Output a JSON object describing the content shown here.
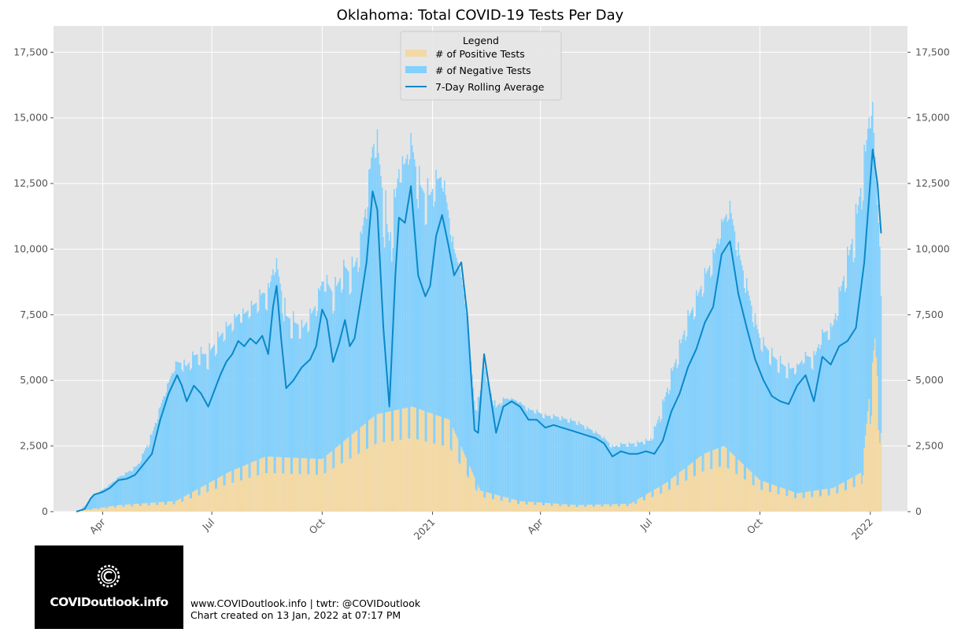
{
  "chart_data": {
    "type": "bar",
    "title": "Oklahoma: Total COVID-19 Tests Per Day",
    "xlabel": "",
    "ylabel": "",
    "ylim": [
      0,
      18500
    ],
    "y_ticks": [
      0,
      2500,
      5000,
      7500,
      10000,
      12500,
      15000,
      17500
    ],
    "y_tick_labels": [
      "0",
      "2,500",
      "5,000",
      "7,500",
      "10,000",
      "12,500",
      "15,000",
      "17,500"
    ],
    "y_axis_both_sides": true,
    "x_range": [
      "2020-02-20",
      "2022-02-01"
    ],
    "x_ticks": [
      {
        "date": "2020-04-01",
        "label": "Apr"
      },
      {
        "date": "2020-07-01",
        "label": "Jul"
      },
      {
        "date": "2020-10-01",
        "label": "Oct"
      },
      {
        "date": "2021-01-01",
        "label": "2021"
      },
      {
        "date": "2021-04-01",
        "label": "Apr"
      },
      {
        "date": "2021-07-01",
        "label": "Jul"
      },
      {
        "date": "2021-10-01",
        "label": "Oct"
      },
      {
        "date": "2022-01-01",
        "label": "2022"
      }
    ],
    "grid": true,
    "stacked": true,
    "legend": {
      "title": "Legend",
      "position": "top-center",
      "entries": [
        "# of Positive Tests",
        "# of Negative Tests",
        "7-Day Rolling Average"
      ]
    },
    "colors": {
      "positive": "#f3d9a4",
      "negative": "#83d0fc",
      "rolling": "#0a88c8",
      "plot_bg": "#e5e5e5",
      "grid": "#ffffff"
    },
    "series": [
      {
        "name": "7-Day Rolling Average",
        "kind": "line",
        "points": [
          [
            "2020-03-10",
            0
          ],
          [
            "2020-03-17",
            100
          ],
          [
            "2020-03-22",
            500
          ],
          [
            "2020-03-25",
            650
          ],
          [
            "2020-04-01",
            750
          ],
          [
            "2020-04-07",
            900
          ],
          [
            "2020-04-14",
            1200
          ],
          [
            "2020-04-21",
            1250
          ],
          [
            "2020-04-28",
            1400
          ],
          [
            "2020-05-05",
            1800
          ],
          [
            "2020-05-12",
            2200
          ],
          [
            "2020-05-19",
            3500
          ],
          [
            "2020-05-26",
            4500
          ],
          [
            "2020-06-02",
            5200
          ],
          [
            "2020-06-06",
            4800
          ],
          [
            "2020-06-10",
            4200
          ],
          [
            "2020-06-16",
            4800
          ],
          [
            "2020-06-22",
            4500
          ],
          [
            "2020-06-28",
            4000
          ],
          [
            "2020-07-03",
            4600
          ],
          [
            "2020-07-08",
            5200
          ],
          [
            "2020-07-13",
            5700
          ],
          [
            "2020-07-18",
            6000
          ],
          [
            "2020-07-23",
            6500
          ],
          [
            "2020-07-28",
            6300
          ],
          [
            "2020-08-02",
            6600
          ],
          [
            "2020-08-07",
            6400
          ],
          [
            "2020-08-12",
            6700
          ],
          [
            "2020-08-17",
            6000
          ],
          [
            "2020-08-21",
            7800
          ],
          [
            "2020-08-24",
            8600
          ],
          [
            "2020-08-28",
            6500
          ],
          [
            "2020-09-01",
            4700
          ],
          [
            "2020-09-07",
            5000
          ],
          [
            "2020-09-14",
            5500
          ],
          [
            "2020-09-21",
            5800
          ],
          [
            "2020-09-26",
            6300
          ],
          [
            "2020-10-01",
            7700
          ],
          [
            "2020-10-05",
            7300
          ],
          [
            "2020-10-10",
            5700
          ],
          [
            "2020-10-15",
            6400
          ],
          [
            "2020-10-20",
            7300
          ],
          [
            "2020-10-24",
            6300
          ],
          [
            "2020-10-28",
            6600
          ],
          [
            "2020-11-02",
            8000
          ],
          [
            "2020-11-07",
            9500
          ],
          [
            "2020-11-12",
            12200
          ],
          [
            "2020-11-16",
            11500
          ],
          [
            "2020-11-21",
            7000
          ],
          [
            "2020-11-26",
            4000
          ],
          [
            "2020-12-01",
            9000
          ],
          [
            "2020-12-04",
            11200
          ],
          [
            "2020-12-09",
            11000
          ],
          [
            "2020-12-14",
            12400
          ],
          [
            "2020-12-20",
            9000
          ],
          [
            "2020-12-26",
            8200
          ],
          [
            "2020-12-30",
            8600
          ],
          [
            "2021-01-04",
            10500
          ],
          [
            "2021-01-09",
            11300
          ],
          [
            "2021-01-14",
            10200
          ],
          [
            "2021-01-19",
            9000
          ],
          [
            "2021-01-25",
            9500
          ],
          [
            "2021-01-30",
            7500
          ],
          [
            "2021-02-05",
            3100
          ],
          [
            "2021-02-08",
            3000
          ],
          [
            "2021-02-13",
            6000
          ],
          [
            "2021-02-18",
            4500
          ],
          [
            "2021-02-23",
            3000
          ],
          [
            "2021-03-01",
            4000
          ],
          [
            "2021-03-08",
            4200
          ],
          [
            "2021-03-15",
            4000
          ],
          [
            "2021-03-22",
            3500
          ],
          [
            "2021-03-29",
            3500
          ],
          [
            "2021-04-05",
            3200
          ],
          [
            "2021-04-12",
            3300
          ],
          [
            "2021-04-19",
            3200
          ],
          [
            "2021-04-26",
            3100
          ],
          [
            "2021-05-03",
            3000
          ],
          [
            "2021-05-10",
            2900
          ],
          [
            "2021-05-17",
            2800
          ],
          [
            "2021-05-24",
            2600
          ],
          [
            "2021-05-31",
            2100
          ],
          [
            "2021-06-07",
            2300
          ],
          [
            "2021-06-14",
            2200
          ],
          [
            "2021-06-21",
            2200
          ],
          [
            "2021-06-28",
            2300
          ],
          [
            "2021-07-05",
            2200
          ],
          [
            "2021-07-12",
            2700
          ],
          [
            "2021-07-19",
            3800
          ],
          [
            "2021-07-26",
            4500
          ],
          [
            "2021-08-02",
            5500
          ],
          [
            "2021-08-09",
            6200
          ],
          [
            "2021-08-16",
            7200
          ],
          [
            "2021-08-23",
            7800
          ],
          [
            "2021-08-30",
            9800
          ],
          [
            "2021-09-06",
            10300
          ],
          [
            "2021-09-13",
            8300
          ],
          [
            "2021-09-20",
            7000
          ],
          [
            "2021-09-27",
            5800
          ],
          [
            "2021-10-04",
            5000
          ],
          [
            "2021-10-11",
            4400
          ],
          [
            "2021-10-18",
            4200
          ],
          [
            "2021-10-25",
            4100
          ],
          [
            "2021-11-01",
            4800
          ],
          [
            "2021-11-08",
            5200
          ],
          [
            "2021-11-15",
            4200
          ],
          [
            "2021-11-22",
            5900
          ],
          [
            "2021-11-29",
            5600
          ],
          [
            "2021-12-06",
            6300
          ],
          [
            "2021-12-13",
            6500
          ],
          [
            "2021-12-20",
            7000
          ],
          [
            "2021-12-27",
            9500
          ],
          [
            "2022-01-03",
            13800
          ],
          [
            "2022-01-07",
            12500
          ],
          [
            "2022-01-10",
            10600
          ]
        ]
      },
      {
        "name": "# of Negative Tests",
        "kind": "bar-envelope",
        "note": "approximate peak daily total tests",
        "points": [
          [
            "2020-03-15",
            200
          ],
          [
            "2020-04-01",
            900
          ],
          [
            "2020-05-01",
            2000
          ],
          [
            "2020-06-01",
            6000
          ],
          [
            "2020-07-01",
            7500
          ],
          [
            "2020-08-01",
            8500
          ],
          [
            "2020-08-22",
            10300
          ],
          [
            "2020-09-15",
            8000
          ],
          [
            "2020-10-01",
            9500
          ],
          [
            "2020-11-01",
            11500
          ],
          [
            "2020-11-15",
            16000
          ],
          [
            "2020-12-01",
            14000
          ],
          [
            "2020-12-15",
            15400
          ],
          [
            "2021-01-10",
            13700
          ],
          [
            "2021-02-05",
            5000
          ],
          [
            "2021-03-01",
            4500
          ],
          [
            "2021-04-01",
            4000
          ],
          [
            "2021-05-01",
            3700
          ],
          [
            "2021-06-01",
            2700
          ],
          [
            "2021-07-01",
            3000
          ],
          [
            "2021-08-01",
            8500
          ],
          [
            "2021-09-06",
            12500
          ],
          [
            "2021-10-01",
            7500
          ],
          [
            "2021-11-01",
            6000
          ],
          [
            "2021-12-01",
            8000
          ],
          [
            "2022-01-02",
            17700
          ],
          [
            "2022-01-10",
            7200
          ]
        ]
      },
      {
        "name": "# of Positive Tests",
        "kind": "bar-envelope",
        "note": "approximate peak daily positive tests",
        "points": [
          [
            "2020-03-15",
            50
          ],
          [
            "2020-04-15",
            250
          ],
          [
            "2020-06-01",
            400
          ],
          [
            "2020-07-15",
            1500
          ],
          [
            "2020-08-15",
            2100
          ],
          [
            "2020-10-01",
            2000
          ],
          [
            "2020-11-15",
            3700
          ],
          [
            "2020-12-15",
            4000
          ],
          [
            "2021-01-15",
            3500
          ],
          [
            "2021-02-10",
            800
          ],
          [
            "2021-03-15",
            400
          ],
          [
            "2021-05-01",
            250
          ],
          [
            "2021-06-15",
            300
          ],
          [
            "2021-07-15",
            1100
          ],
          [
            "2021-08-15",
            2200
          ],
          [
            "2021-09-01",
            2500
          ],
          [
            "2021-10-01",
            1200
          ],
          [
            "2021-11-01",
            700
          ],
          [
            "2021-12-01",
            900
          ],
          [
            "2021-12-25",
            1500
          ],
          [
            "2022-01-05",
            6600
          ],
          [
            "2022-01-10",
            3000
          ]
        ]
      }
    ]
  },
  "footer": {
    "line1": "www.COVIDoutlook.info | twtr: @COVIDoutlook",
    "line2": "Chart created on 13 Jan, 2022 at 07:17 PM"
  },
  "logo": {
    "text": "COVIDoutlook.info",
    "icon": "virus-c-icon"
  }
}
